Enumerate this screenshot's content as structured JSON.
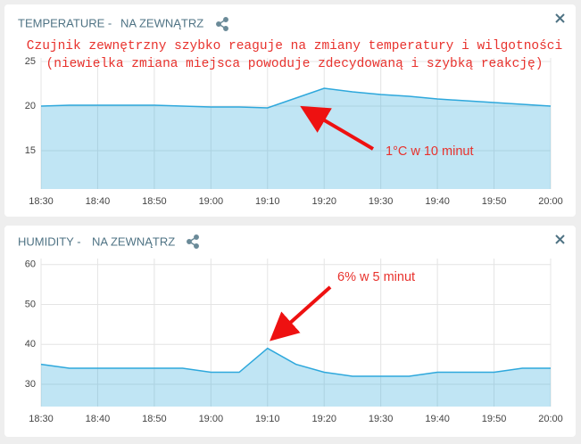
{
  "chart_data": [
    {
      "type": "area",
      "title": "TEMPERATURE -",
      "subtitle": "NA ZEWNĄTRZ",
      "annotations": [
        "Czujnik zewnętrzny szybko reaguje na zmiany temperatury i wilgotności",
        "(niewielka zmiana miejsca powoduje zdecydowaną i szybką reakcję)",
        "1°C w 10 minut"
      ],
      "x": [
        "18:30",
        "18:35",
        "18:40",
        "18:45",
        "18:50",
        "18:55",
        "19:00",
        "19:05",
        "19:10",
        "19:15",
        "19:20",
        "19:25",
        "19:30",
        "19:35",
        "19:40",
        "19:45",
        "19:50",
        "19:55",
        "20:00"
      ],
      "series": [
        {
          "name": "NA ZEWNĄTRZ",
          "color": "#2ea8dc",
          "values": [
            20.0,
            20.1,
            20.1,
            20.1,
            20.1,
            20.0,
            19.9,
            19.9,
            19.8,
            20.9,
            22.0,
            21.6,
            21.3,
            21.1,
            20.8,
            20.6,
            20.4,
            20.2,
            20.0
          ]
        }
      ],
      "xlim": [
        "18:30",
        "20:00"
      ],
      "xticks": [
        "18:30",
        "18:40",
        "18:50",
        "19:00",
        "19:10",
        "19:20",
        "19:30",
        "19:40",
        "19:50",
        "20:00"
      ],
      "ylim": [
        10.7,
        25.4
      ],
      "yticks": [
        15,
        20,
        25
      ],
      "grid": true
    },
    {
      "type": "area",
      "title": "HUMIDITY -",
      "subtitle": "NA ZEWNĄTRZ",
      "annotations": [
        "6% w 5 minut"
      ],
      "x": [
        "18:30",
        "18:35",
        "18:40",
        "18:45",
        "18:50",
        "18:55",
        "19:00",
        "19:05",
        "19:10",
        "19:15",
        "19:20",
        "19:25",
        "19:30",
        "19:35",
        "19:40",
        "19:45",
        "19:50",
        "19:55",
        "20:00"
      ],
      "series": [
        {
          "name": "NA ZEWNĄTRZ",
          "color": "#2ea8dc",
          "values": [
            35,
            34,
            34,
            34,
            34,
            34,
            33,
            33,
            39,
            35,
            33,
            32,
            32,
            32,
            33,
            33,
            33,
            34,
            34
          ]
        }
      ],
      "xlim": [
        "18:30",
        "20:00"
      ],
      "xticks": [
        "18:30",
        "18:40",
        "18:50",
        "19:00",
        "19:10",
        "19:20",
        "19:30",
        "19:40",
        "19:50",
        "20:00"
      ],
      "ylim": [
        24.4,
        61.5
      ],
      "yticks": [
        30,
        40,
        50,
        60
      ],
      "grid": true
    }
  ]
}
